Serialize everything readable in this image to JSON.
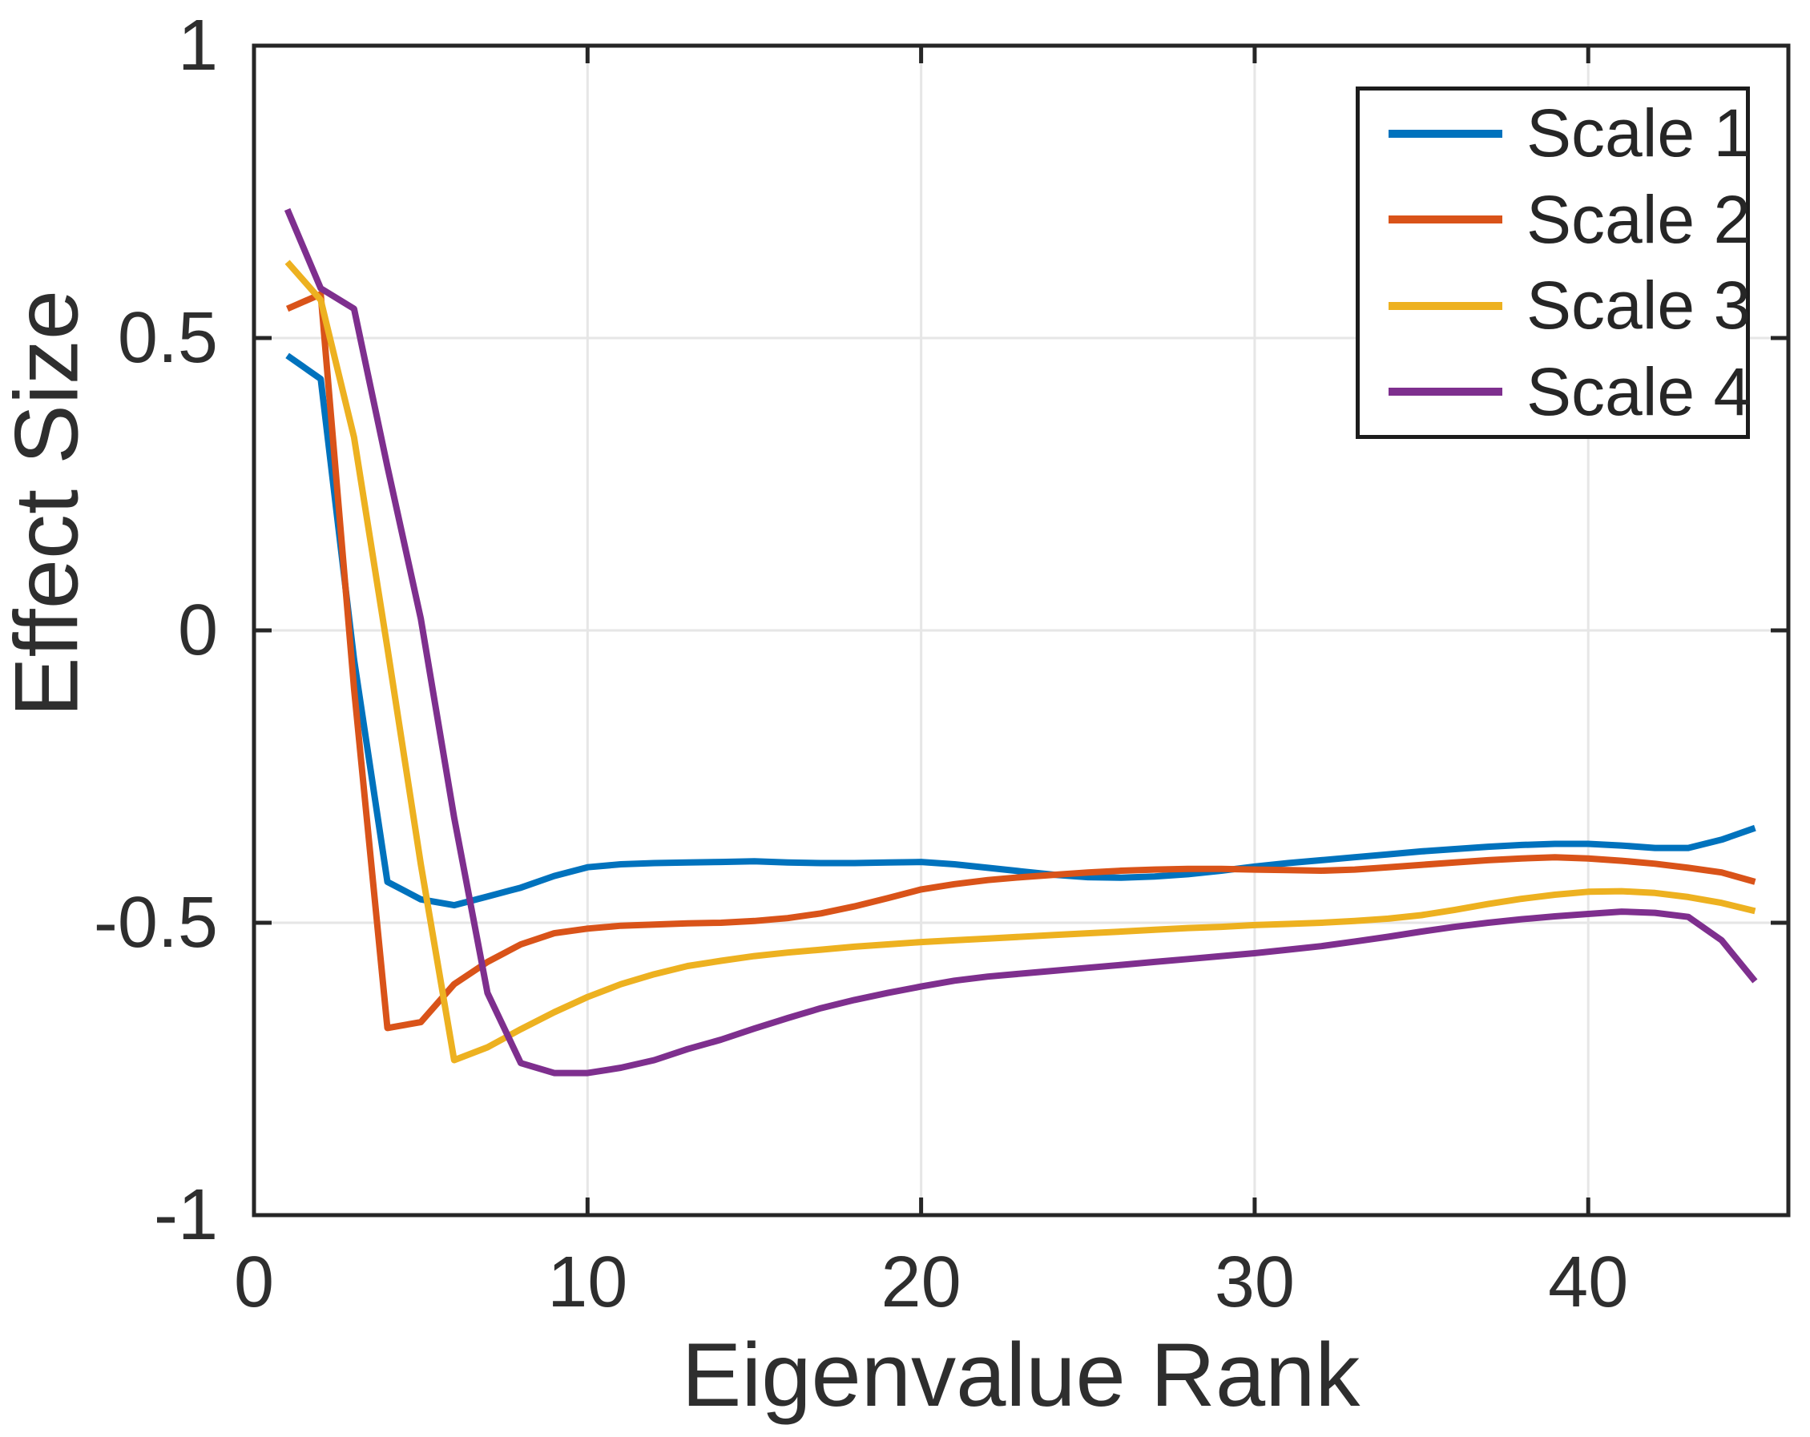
{
  "figure": {
    "background": "#ffffff",
    "axes_color": "#262626",
    "grid_color": "#e6e6e6",
    "text_color": "#2e2e2e"
  },
  "chart_data": {
    "type": "line",
    "title": "",
    "xlabel": "Eigenvalue Rank",
    "ylabel": "Effect Size",
    "xlim": [
      0,
      46
    ],
    "ylim": [
      -1,
      1
    ],
    "grid": true,
    "legend_position": "top-right",
    "xticks": [
      {
        "value": 0,
        "label": "0"
      },
      {
        "value": 10,
        "label": "10"
      },
      {
        "value": 20,
        "label": "20"
      },
      {
        "value": 30,
        "label": "30"
      },
      {
        "value": 40,
        "label": "40"
      }
    ],
    "yticks": [
      {
        "value": 1,
        "label": "1"
      },
      {
        "value": 0.5,
        "label": "0.5"
      },
      {
        "value": 0,
        "label": "0"
      },
      {
        "value": -0.5,
        "label": "-0.5"
      },
      {
        "value": -1,
        "label": "-1"
      }
    ],
    "x": [
      1,
      2,
      3,
      4,
      5,
      6,
      7,
      8,
      9,
      10,
      11,
      12,
      13,
      14,
      15,
      16,
      17,
      18,
      19,
      20,
      21,
      22,
      23,
      24,
      25,
      26,
      27,
      28,
      29,
      30,
      31,
      32,
      33,
      34,
      35,
      36,
      37,
      38,
      39,
      40,
      41,
      42,
      43,
      44,
      45
    ],
    "series": [
      {
        "name": "Scale 1",
        "color": "#0072BD",
        "values": [
          0.47,
          0.43,
          -0.05,
          -0.43,
          -0.46,
          -0.47,
          -0.455,
          -0.44,
          -0.42,
          -0.405,
          -0.4,
          -0.398,
          -0.397,
          -0.396,
          -0.395,
          -0.397,
          -0.398,
          -0.398,
          -0.397,
          -0.396,
          -0.4,
          -0.406,
          -0.412,
          -0.418,
          -0.422,
          -0.423,
          -0.421,
          -0.417,
          -0.411,
          -0.404,
          -0.398,
          -0.393,
          -0.388,
          -0.383,
          -0.378,
          -0.374,
          -0.37,
          -0.367,
          -0.365,
          -0.365,
          -0.368,
          -0.372,
          -0.372,
          -0.358,
          -0.338
        ]
      },
      {
        "name": "Scale 2",
        "color": "#D95319",
        "values": [
          0.55,
          0.575,
          -0.1,
          -0.68,
          -0.67,
          -0.605,
          -0.567,
          -0.537,
          -0.518,
          -0.51,
          -0.505,
          -0.503,
          -0.501,
          -0.5,
          -0.497,
          -0.492,
          -0.484,
          -0.472,
          -0.458,
          -0.443,
          -0.434,
          -0.427,
          -0.422,
          -0.418,
          -0.414,
          -0.411,
          -0.409,
          -0.408,
          -0.408,
          -0.409,
          -0.41,
          -0.411,
          -0.409,
          -0.405,
          -0.401,
          -0.397,
          -0.393,
          -0.39,
          -0.388,
          -0.39,
          -0.394,
          -0.399,
          -0.406,
          -0.414,
          -0.43
        ]
      },
      {
        "name": "Scale 3",
        "color": "#EDB120",
        "values": [
          0.63,
          0.565,
          0.33,
          -0.03,
          -0.4,
          -0.735,
          -0.713,
          -0.682,
          -0.653,
          -0.627,
          -0.605,
          -0.588,
          -0.574,
          -0.565,
          -0.557,
          -0.551,
          -0.546,
          -0.541,
          -0.537,
          -0.533,
          -0.53,
          -0.527,
          -0.524,
          -0.521,
          -0.518,
          -0.515,
          -0.512,
          -0.509,
          -0.507,
          -0.504,
          -0.502,
          -0.5,
          -0.497,
          -0.493,
          -0.487,
          -0.478,
          -0.468,
          -0.459,
          -0.452,
          -0.447,
          -0.446,
          -0.449,
          -0.456,
          -0.466,
          -0.48
        ]
      },
      {
        "name": "Scale 4",
        "color": "#7E2F8E",
        "values": [
          0.72,
          0.585,
          0.55,
          0.28,
          0.02,
          -0.32,
          -0.62,
          -0.74,
          -0.757,
          -0.757,
          -0.748,
          -0.735,
          -0.716,
          -0.7,
          -0.681,
          -0.663,
          -0.646,
          -0.632,
          -0.62,
          -0.609,
          -0.599,
          -0.592,
          -0.587,
          -0.582,
          -0.577,
          -0.572,
          -0.567,
          -0.562,
          -0.557,
          -0.552,
          -0.546,
          -0.54,
          -0.532,
          -0.524,
          -0.515,
          -0.507,
          -0.5,
          -0.494,
          -0.489,
          -0.485,
          -0.481,
          -0.483,
          -0.49,
          -0.53,
          -0.6
        ]
      }
    ]
  }
}
